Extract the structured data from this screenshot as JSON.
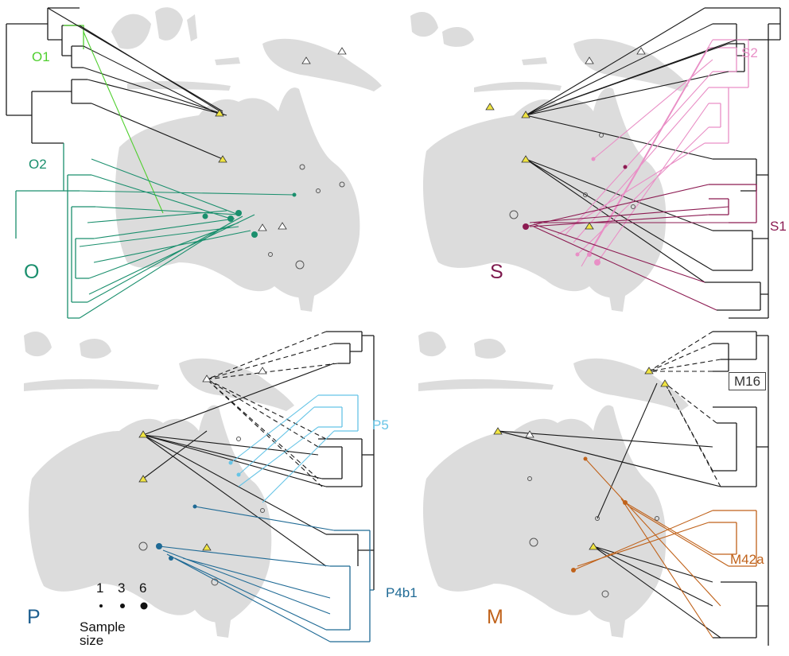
{
  "panels": [
    {
      "id": "O",
      "letter": "O",
      "letter_color": "#1a8f6d",
      "clades": [
        {
          "label": "O1",
          "color": "#4fcf2e"
        },
        {
          "label": "O2",
          "color": "#1a8f6d"
        }
      ]
    },
    {
      "id": "S",
      "letter": "S",
      "letter_color": "#7e1a4e",
      "clades": [
        {
          "label": "S2",
          "color": "#e98fc6"
        },
        {
          "label": "S1",
          "color": "#8c1b52"
        }
      ]
    },
    {
      "id": "P",
      "letter": "P",
      "letter_color": "#1f5f90",
      "clades": [
        {
          "label": "P5",
          "color": "#66c4e6"
        },
        {
          "label": "P4b1",
          "color": "#1f6a95"
        }
      ]
    },
    {
      "id": "M",
      "letter": "M",
      "letter_color": "#c0621a",
      "clades": [
        {
          "label": "M16",
          "color": "#333333"
        },
        {
          "label": "M42a",
          "color": "#c0621a"
        }
      ]
    }
  ],
  "legend": {
    "sizes": [
      "1",
      "3",
      "6"
    ],
    "title": "Sample size"
  },
  "colors": {
    "land": "#dcdcdc",
    "tree": "#1a1a1a",
    "ancient_marker": "#f0e442"
  }
}
